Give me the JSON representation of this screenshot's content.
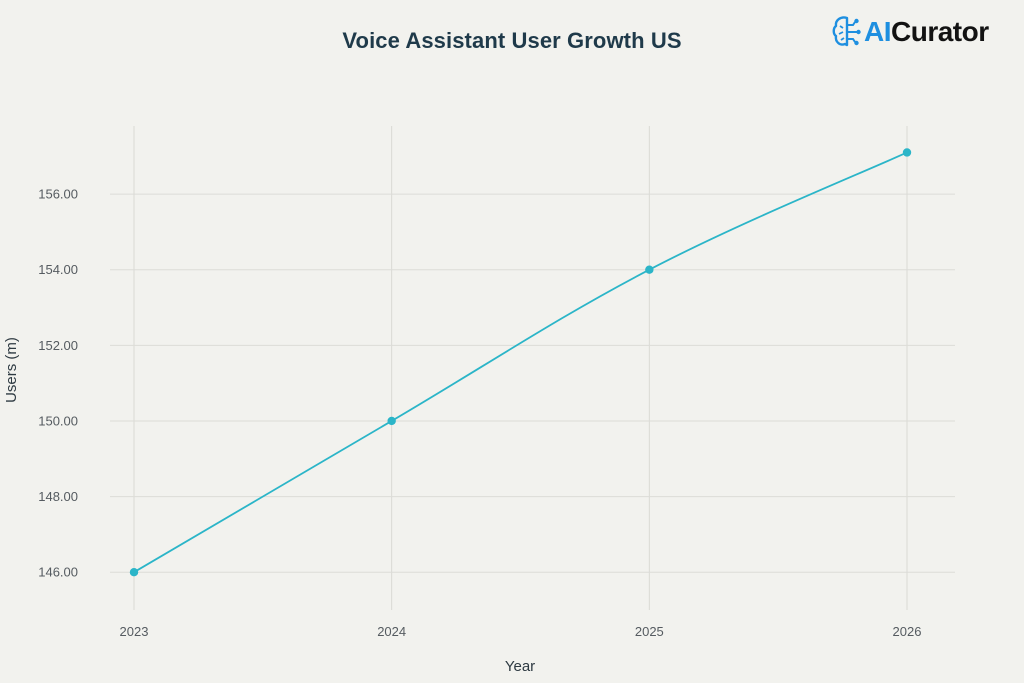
{
  "header": {
    "title": "Voice Assistant User Growth US"
  },
  "logo": {
    "text_accent": "AI",
    "text_rest": "Curator",
    "icon": "brain-circuit-icon",
    "accent_color": "#1e8fe0"
  },
  "chart_data": {
    "type": "line",
    "title": "Voice Assistant User Growth US",
    "xlabel": "Year",
    "ylabel": "Users (m)",
    "categories": [
      "2023",
      "2024",
      "2025",
      "2026"
    ],
    "series": [
      {
        "values": [
          146.0,
          150.0,
          154.0,
          157.1
        ],
        "color": "#2bb5c8"
      }
    ],
    "ylim": [
      145.0,
      157.8
    ],
    "yticks": [
      146,
      148,
      150,
      152,
      154,
      156
    ],
    "ytick_labels": [
      "146.00",
      "148.00",
      "150.00",
      "152.00",
      "154.00",
      "156.00"
    ],
    "grid": true,
    "markers": true,
    "legend": "none"
  }
}
